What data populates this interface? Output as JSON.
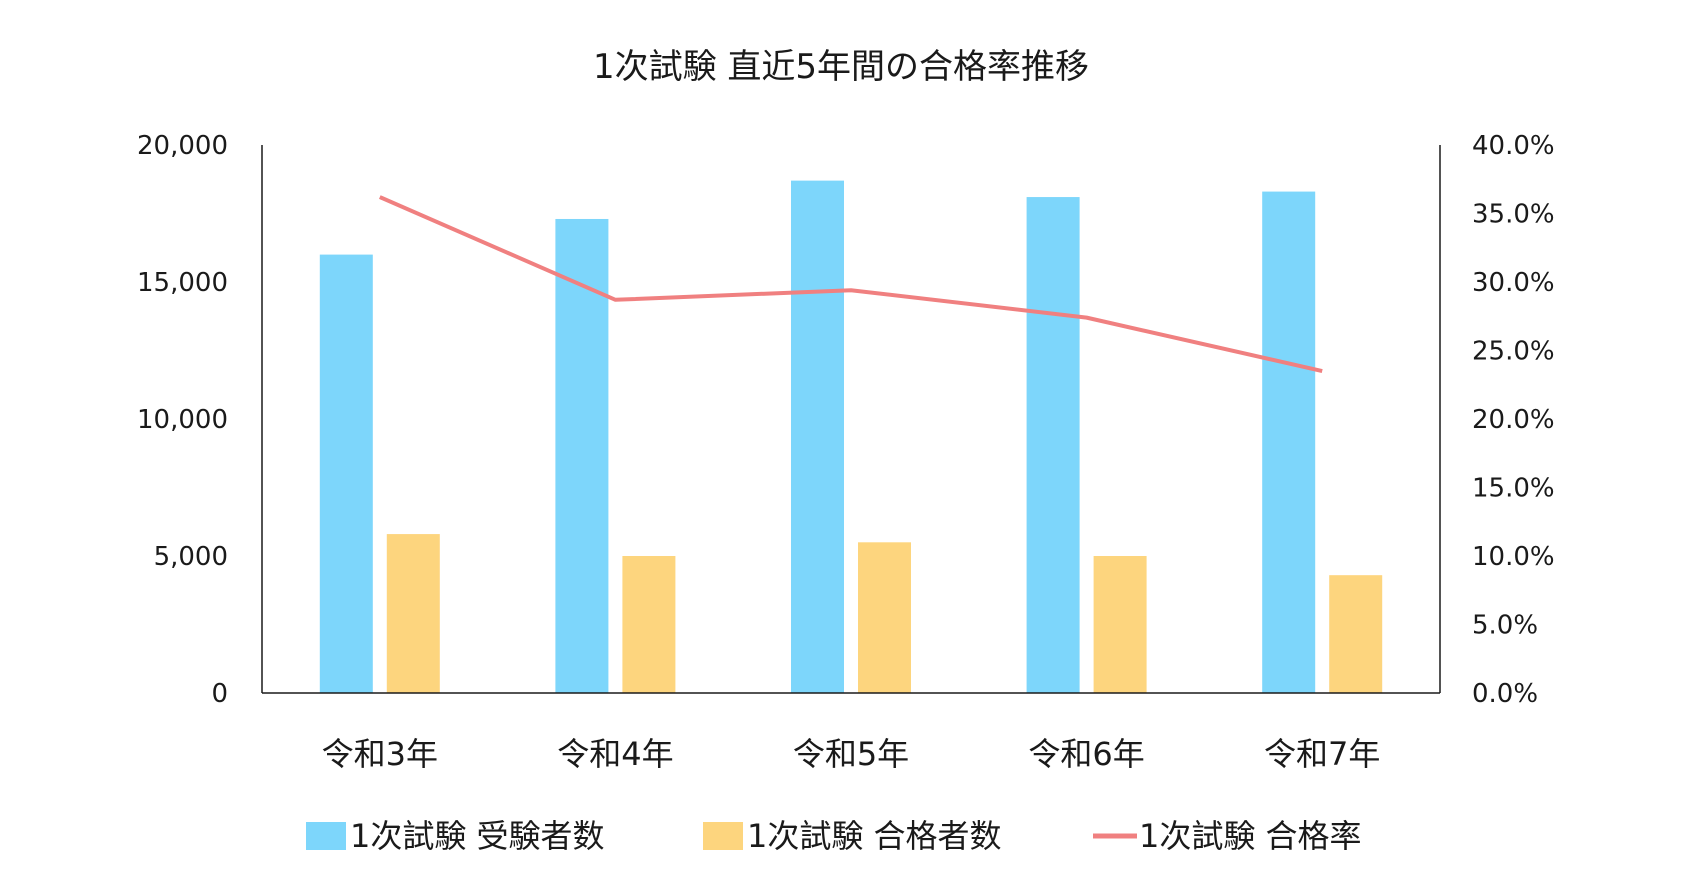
{
  "chart_data": {
    "type": "bar",
    "title": "1次試験 直近5年間の合格率推移",
    "categories": [
      "令和3年",
      "令和4年",
      "令和5年",
      "令和6年",
      "令和7年"
    ],
    "y_left": {
      "min": 0,
      "max": 20000,
      "step": 5000,
      "tick_labels": [
        "0",
        "5,000",
        "10,000",
        "15,000",
        "20,000"
      ]
    },
    "y_right": {
      "min": 0,
      "max": 0.4,
      "step": 0.05,
      "tick_labels": [
        "0.0%",
        "5.0%",
        "10.0%",
        "15.0%",
        "20.0%",
        "25.0%",
        "30.0%",
        "35.0%",
        "40.0%"
      ]
    },
    "series": [
      {
        "name": "1次試験 受験者数",
        "type": "bar",
        "axis": "left",
        "color": "#7dd6fb",
        "values": [
          16000,
          17300,
          18700,
          18100,
          18300
        ]
      },
      {
        "name": "1次試験 合格者数",
        "type": "bar",
        "axis": "left",
        "color": "#fdd57e",
        "values": [
          5800,
          5000,
          5500,
          5000,
          4300
        ]
      },
      {
        "name": "1次試験 合格率",
        "type": "line",
        "axis": "right",
        "color": "#f08080",
        "values": [
          0.362,
          0.287,
          0.294,
          0.274,
          0.235
        ]
      }
    ],
    "grid": false,
    "legend": "bottom"
  }
}
